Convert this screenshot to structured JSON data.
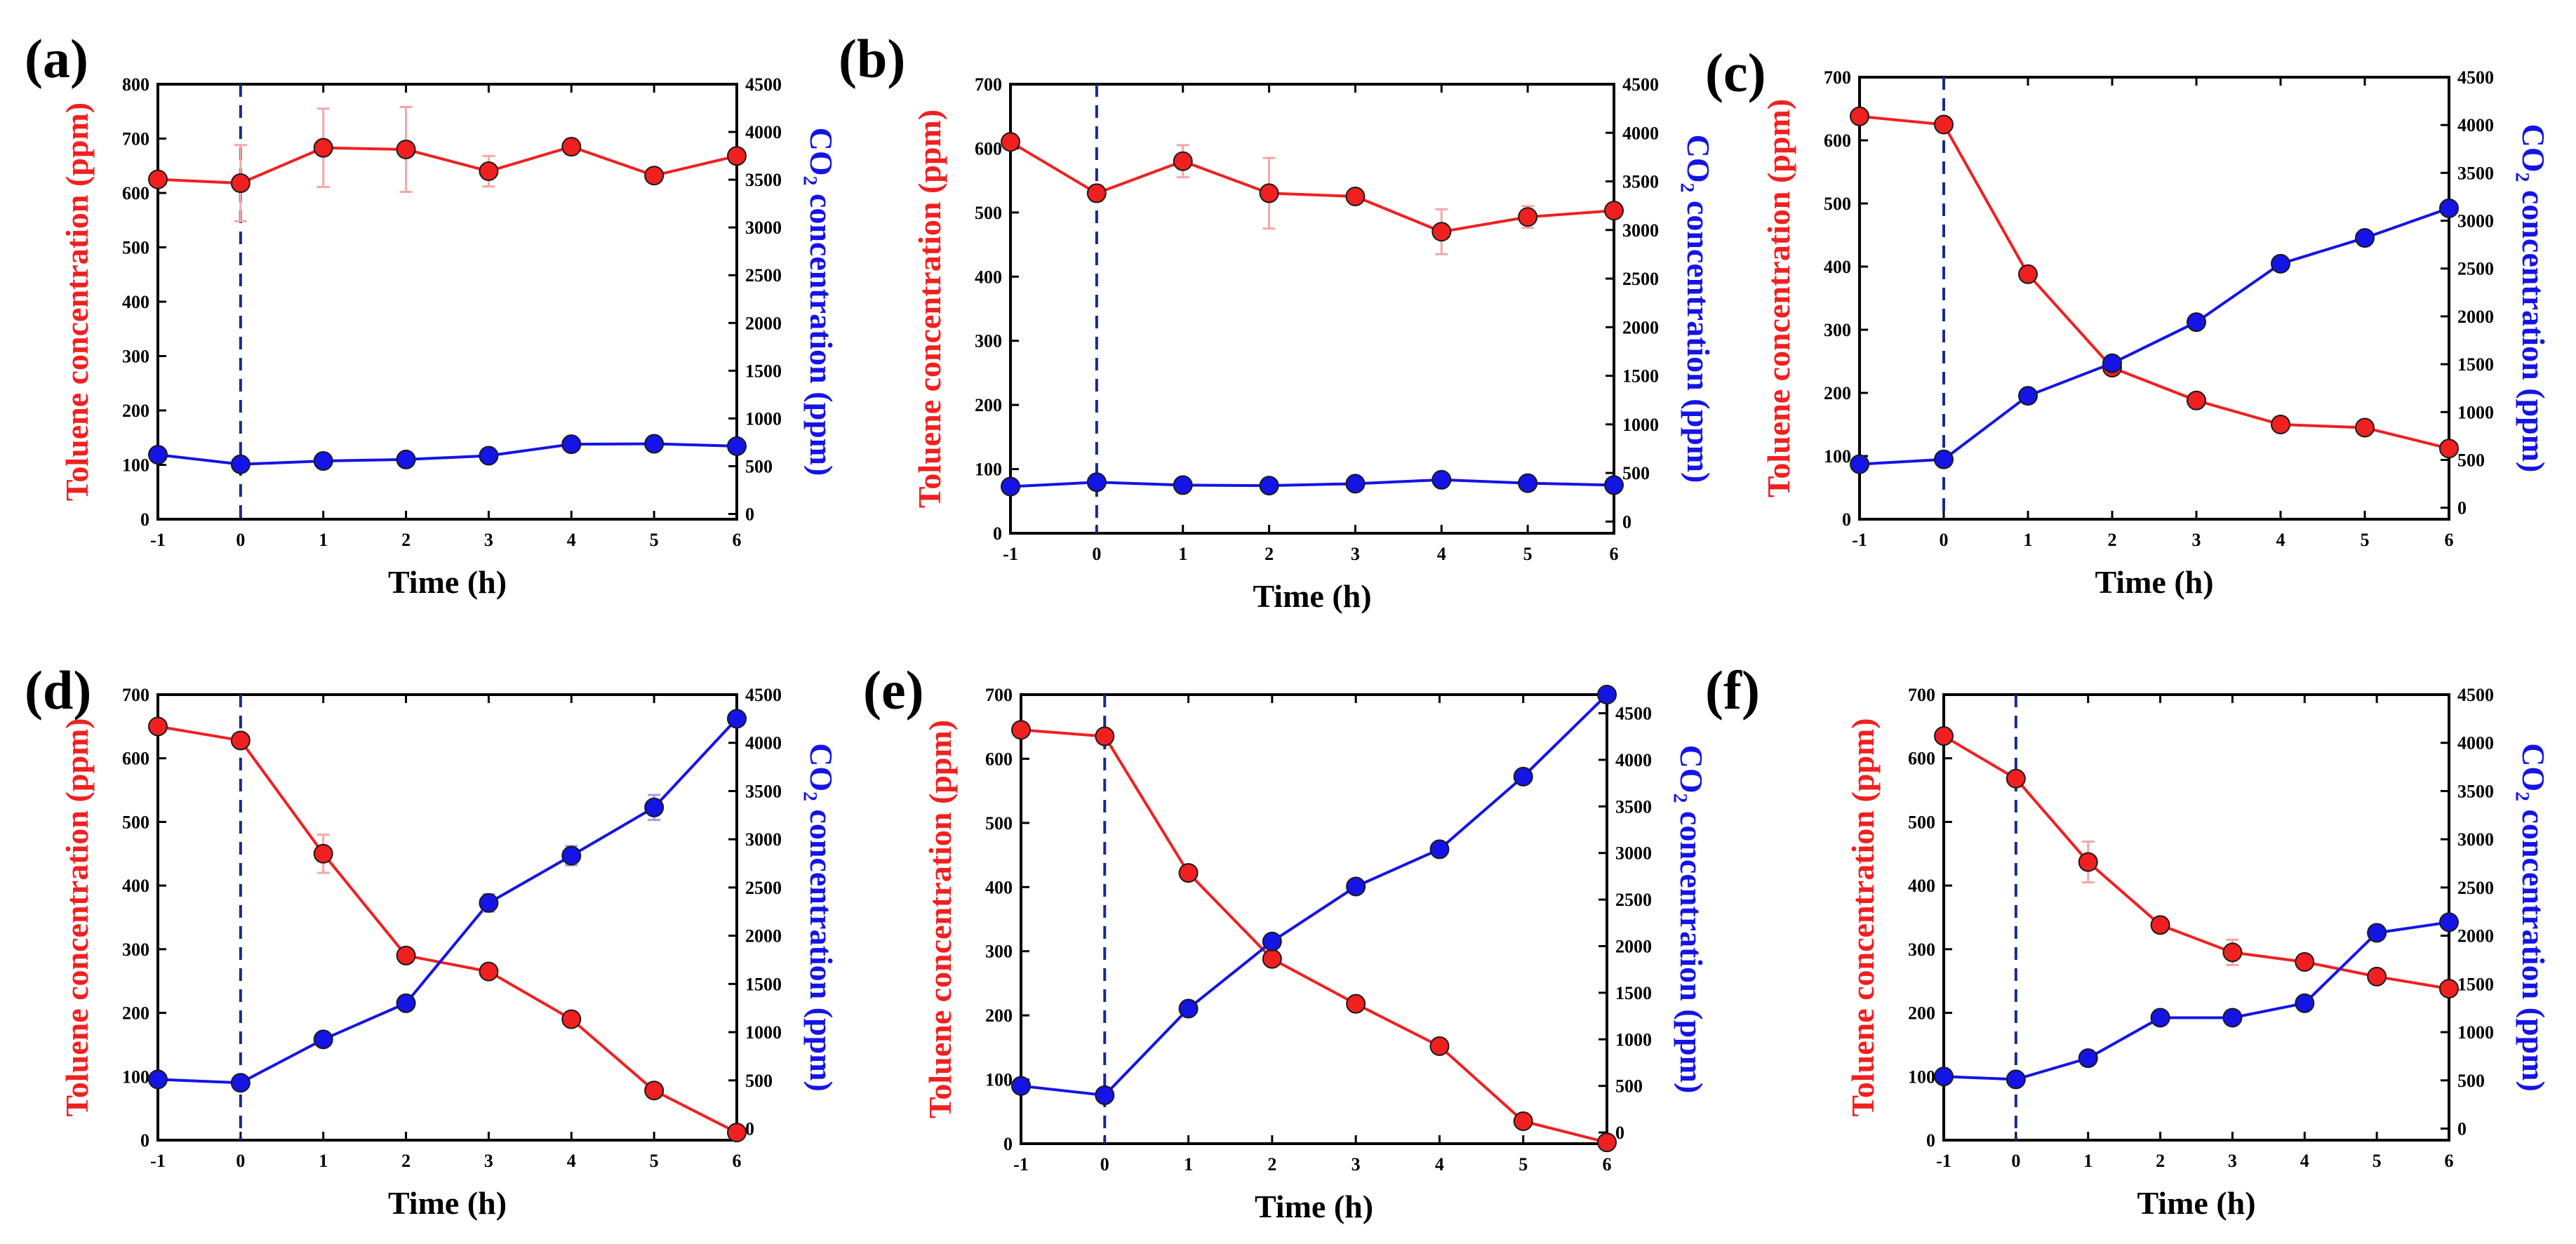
{
  "colors": {
    "toluene": "#f02020",
    "co2": "#1414e6",
    "marker_line": "#1a1a1a",
    "axis": "#000000",
    "errorbar": "#f2a8a8",
    "divider": "#1a2a8c"
  },
  "chart_data": [
    {
      "type": "line",
      "panel_label": "(a)",
      "xlabel": "Time (h)",
      "ylabel_left": "Toluene concentration (ppm)",
      "ylabel_right": "CO₂ concentration (ppm)",
      "x": [
        -1,
        0,
        1,
        2,
        3,
        4,
        5,
        6
      ],
      "xlim": [
        -1,
        6
      ],
      "xticks": [
        "-1",
        "0",
        "1",
        "2",
        "3",
        "4",
        "5",
        "6"
      ],
      "ylim_left": [
        0,
        800
      ],
      "yticks_left": [
        "0",
        "100",
        "200",
        "300",
        "400",
        "500",
        "600",
        "700",
        "800"
      ],
      "ylim_right": [
        -55,
        4500
      ],
      "yticks_right": [
        "0",
        "500",
        "1000",
        "1500",
        "2000",
        "2500",
        "3000",
        "3500",
        "4000",
        "4500"
      ],
      "series": [
        {
          "name": "Toluene",
          "axis": "left",
          "values": [
            625,
            618,
            683,
            680,
            640,
            685,
            632,
            668
          ],
          "errors": [
            0,
            70,
            72,
            78,
            28,
            14,
            8,
            0
          ]
        },
        {
          "name": "CO2",
          "axis": "right",
          "values": [
            620,
            520,
            555,
            570,
            610,
            730,
            735,
            710
          ]
        }
      ]
    },
    {
      "type": "line",
      "panel_label": "(b)",
      "xlabel": "Time (h)",
      "ylabel_left": "Toluene concentration (ppm)",
      "ylabel_right": "CO₂ concentration (ppm)",
      "x": [
        -1,
        0,
        1,
        2,
        3,
        4,
        5,
        6
      ],
      "xlim": [
        -1,
        6
      ],
      "xticks": [
        "-1",
        "0",
        "1",
        "2",
        "3",
        "4",
        "5",
        "6"
      ],
      "ylim_left": [
        0,
        700
      ],
      "yticks_left": [
        "0",
        "100",
        "200",
        "300",
        "400",
        "500",
        "600",
        "700"
      ],
      "ylim_right": [
        -120,
        4500
      ],
      "yticks_right": [
        "0",
        "500",
        "1000",
        "1500",
        "2000",
        "2500",
        "3000",
        "3500",
        "4000",
        "4500"
      ],
      "series": [
        {
          "name": "Toluene",
          "axis": "left",
          "values": [
            610,
            530,
            580,
            530,
            525,
            470,
            493,
            503
          ],
          "errors": [
            0,
            12,
            25,
            55,
            0,
            35,
            17,
            0
          ]
        },
        {
          "name": "CO2",
          "axis": "right",
          "values": [
            360,
            405,
            375,
            370,
            390,
            430,
            395,
            375
          ]
        }
      ]
    },
    {
      "type": "line",
      "panel_label": "(c)",
      "xlabel": "Time (h)",
      "ylabel_left": "Toluene concentration (ppm)",
      "ylabel_right": "CO₂ concentration (ppm)",
      "x": [
        -1,
        0,
        1,
        2,
        3,
        4,
        5,
        6
      ],
      "xlim": [
        -1,
        6
      ],
      "xticks": [
        "-1",
        "0",
        "1",
        "2",
        "3",
        "4",
        "5",
        "6"
      ],
      "ylim_left": [
        0,
        700
      ],
      "yticks_left": [
        "0",
        "100",
        "200",
        "300",
        "400",
        "500",
        "600",
        "700"
      ],
      "ylim_right": [
        -120,
        4500
      ],
      "yticks_right": [
        "0",
        "500",
        "1000",
        "1500",
        "2000",
        "2500",
        "3000",
        "3500",
        "4000",
        "4500"
      ],
      "series": [
        {
          "name": "Toluene",
          "axis": "left",
          "values": [
            638,
            625,
            388,
            240,
            188,
            150,
            145,
            112
          ],
          "errors": [
            0,
            0,
            0,
            0,
            0,
            0,
            0,
            0
          ]
        },
        {
          "name": "CO2",
          "axis": "right",
          "values": [
            455,
            505,
            1170,
            1510,
            1940,
            2550,
            2820,
            3130
          ]
        }
      ]
    },
    {
      "type": "line",
      "panel_label": "(d)",
      "xlabel": "Time (h)",
      "ylabel_left": "Toluene concentration (ppm)",
      "ylabel_right": "CO₂ concentration (ppm)",
      "x": [
        -1,
        0,
        1,
        2,
        3,
        4,
        5,
        6
      ],
      "xlim": [
        -1,
        6
      ],
      "xticks": [
        "-1",
        "0",
        "1",
        "2",
        "3",
        "4",
        "5",
        "6"
      ],
      "ylim_left": [
        0,
        700
      ],
      "yticks_left": [
        "0",
        "100",
        "200",
        "300",
        "400",
        "500",
        "600",
        "700"
      ],
      "ylim_right": [
        -120,
        4500
      ],
      "yticks_right": [
        "0",
        "500",
        "1000",
        "1500",
        "2000",
        "2500",
        "3000",
        "3500",
        "4000",
        "4500"
      ],
      "series": [
        {
          "name": "Toluene",
          "axis": "left",
          "values": [
            650,
            628,
            450,
            290,
            265,
            190,
            78,
            12
          ],
          "errors": [
            0,
            0,
            30,
            0,
            0,
            0,
            0,
            0
          ]
        },
        {
          "name": "CO2",
          "axis": "right",
          "values": [
            510,
            475,
            925,
            1300,
            2340,
            2830,
            3330,
            4250
          ],
          "errors": [
            0,
            0,
            0,
            0,
            90,
            100,
            130,
            0
          ]
        }
      ]
    },
    {
      "type": "line",
      "panel_label": "(e)",
      "xlabel": "Time (h)",
      "ylabel_left": "Toluene concentration (ppm)",
      "ylabel_right": "CO₂ concentration (ppm)",
      "x": [
        -1,
        0,
        1,
        2,
        3,
        4,
        5,
        6
      ],
      "xlim": [
        -1,
        6
      ],
      "xticks": [
        "-1",
        "0",
        "1",
        "2",
        "3",
        "4",
        "5",
        "6"
      ],
      "ylim_left": [
        0,
        700
      ],
      "yticks_left": [
        "0",
        "100",
        "200",
        "300",
        "400",
        "500",
        "600",
        "700"
      ],
      "ylim_right": [
        -120,
        4700
      ],
      "yticks_right": [
        "0",
        "500",
        "1000",
        "1500",
        "2000",
        "2500",
        "3000",
        "3500",
        "4000",
        "4500"
      ],
      "series": [
        {
          "name": "Toluene",
          "axis": "left",
          "values": [
            645,
            635,
            422,
            288,
            218,
            152,
            35,
            2
          ],
          "errors": [
            0,
            0,
            0,
            0,
            0,
            0,
            0,
            0
          ]
        },
        {
          "name": "CO2",
          "axis": "right",
          "values": [
            500,
            400,
            1330,
            2050,
            2640,
            3040,
            3820,
            4700
          ]
        }
      ]
    },
    {
      "type": "line",
      "panel_label": "(f)",
      "xlabel": "Time (h)",
      "ylabel_left": "Toluene concentration (ppm)",
      "ylabel_right": "CO₂ concentration (ppm)",
      "x": [
        -1,
        0,
        1,
        2,
        3,
        4,
        5,
        6
      ],
      "xlim": [
        -1,
        6
      ],
      "xticks": [
        "-1",
        "0",
        "1",
        "2",
        "3",
        "4",
        "5",
        "6"
      ],
      "ylim_left": [
        0,
        700
      ],
      "yticks_left": [
        "0",
        "100",
        "200",
        "300",
        "400",
        "500",
        "600",
        "700"
      ],
      "ylim_right": [
        -120,
        4500
      ],
      "yticks_right": [
        "0",
        "500",
        "1000",
        "1500",
        "2000",
        "2500",
        "3000",
        "3500",
        "4000",
        "4500"
      ],
      "series": [
        {
          "name": "Toluene",
          "axis": "left",
          "values": [
            635,
            568,
            437,
            338,
            295,
            280,
            257,
            238
          ],
          "errors": [
            0,
            0,
            32,
            0,
            20,
            0,
            0,
            0
          ]
        },
        {
          "name": "CO2",
          "axis": "right",
          "values": [
            540,
            510,
            730,
            1150,
            1150,
            1300,
            2030,
            2140
          ]
        }
      ]
    }
  ]
}
